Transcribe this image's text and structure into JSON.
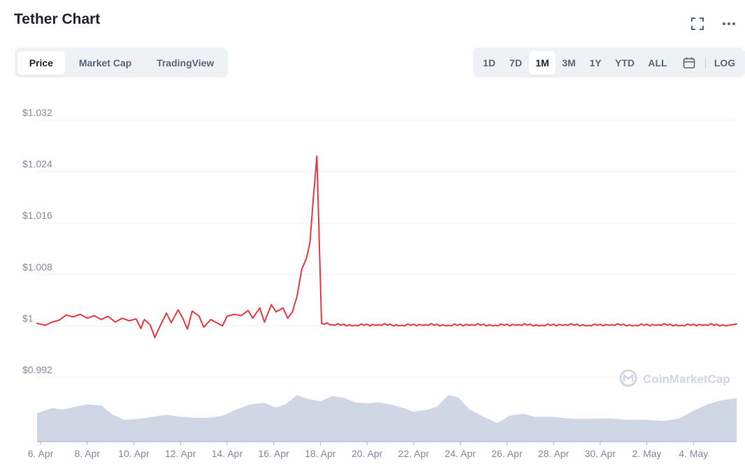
{
  "header": {
    "title": "Tether Chart",
    "icons": [
      "fullscreen-icon",
      "more-icon"
    ]
  },
  "tabs": [
    {
      "label": "Price",
      "active": true
    },
    {
      "label": "Market Cap",
      "active": false
    },
    {
      "label": "TradingView",
      "active": false
    }
  ],
  "ranges": [
    {
      "label": "1D",
      "active": false
    },
    {
      "label": "7D",
      "active": false
    },
    {
      "label": "1M",
      "active": true
    },
    {
      "label": "3M",
      "active": false
    },
    {
      "label": "1Y",
      "active": false
    },
    {
      "label": "YTD",
      "active": false
    },
    {
      "label": "ALL",
      "active": false
    }
  ],
  "log_label": "LOG",
  "watermark": "CoinMarketCap",
  "colors": {
    "line": "#ea3943",
    "volume": "#cfd6e4",
    "grid": "#eff2f5",
    "axis_text": "#808a9d",
    "brand": "#cfd6e4"
  },
  "chart_data": {
    "type": "line",
    "title": "Tether Chart",
    "y_ticks": [
      {
        "value": 1.032,
        "label": "$1.032"
      },
      {
        "value": 1.024,
        "label": "$1.024"
      },
      {
        "value": 1.016,
        "label": "$1.016"
      },
      {
        "value": 1.008,
        "label": "$1.008"
      },
      {
        "value": 1.0,
        "label": "$1"
      },
      {
        "value": 0.992,
        "label": "$0.992"
      }
    ],
    "ylim": [
      0.992,
      1.032
    ],
    "xlim": [
      5.85,
      35.85
    ],
    "x_ticks": [
      {
        "value": 6,
        "label": "6. Apr"
      },
      {
        "value": 8,
        "label": "8. Apr"
      },
      {
        "value": 10,
        "label": "10. Apr"
      },
      {
        "value": 12,
        "label": "12. Apr"
      },
      {
        "value": 14,
        "label": "14. Apr"
      },
      {
        "value": 16,
        "label": "16. Apr"
      },
      {
        "value": 18,
        "label": "18. Apr"
      },
      {
        "value": 20,
        "label": "20. Apr"
      },
      {
        "value": 22,
        "label": "22. Apr"
      },
      {
        "value": 24,
        "label": "24. Apr"
      },
      {
        "value": 26,
        "label": "26. Apr"
      },
      {
        "value": 28,
        "label": "28. Apr"
      },
      {
        "value": 30,
        "label": "30. Apr"
      },
      {
        "value": 32,
        "label": "2. May"
      },
      {
        "value": 34,
        "label": "4. May"
      }
    ],
    "price_series": {
      "name": "Price",
      "points": [
        [
          5.85,
          1.0004
        ],
        [
          6.2,
          1.0001
        ],
        [
          6.5,
          1.0006
        ],
        [
          6.8,
          1.0009
        ],
        [
          7.1,
          1.0017
        ],
        [
          7.4,
          1.0014
        ],
        [
          7.7,
          1.0018
        ],
        [
          8.0,
          1.0012
        ],
        [
          8.3,
          1.0016
        ],
        [
          8.6,
          1.001
        ],
        [
          8.9,
          1.0015
        ],
        [
          9.2,
          1.0006
        ],
        [
          9.5,
          1.0012
        ],
        [
          9.8,
          1.0008
        ],
        [
          10.1,
          1.0011
        ],
        [
          10.3,
          0.9996
        ],
        [
          10.45,
          1.001
        ],
        [
          10.7,
          1.0002
        ],
        [
          10.9,
          0.9982
        ],
        [
          11.1,
          0.9998
        ],
        [
          11.4,
          1.002
        ],
        [
          11.6,
          1.0005
        ],
        [
          11.9,
          1.0025
        ],
        [
          12.1,
          1.0012
        ],
        [
          12.3,
          0.9995
        ],
        [
          12.5,
          1.0023
        ],
        [
          12.8,
          1.0015
        ],
        [
          13.0,
          0.9998
        ],
        [
          13.3,
          1.001
        ],
        [
          13.6,
          1.0004
        ],
        [
          13.8,
          1.0
        ],
        [
          14.0,
          1.0015
        ],
        [
          14.3,
          1.0018
        ],
        [
          14.6,
          1.0016
        ],
        [
          14.9,
          1.0024
        ],
        [
          15.1,
          1.0012
        ],
        [
          15.4,
          1.0028
        ],
        [
          15.6,
          1.0006
        ],
        [
          15.9,
          1.0033
        ],
        [
          16.1,
          1.0022
        ],
        [
          16.4,
          1.0028
        ],
        [
          16.6,
          1.0012
        ],
        [
          16.8,
          1.0022
        ],
        [
          17.0,
          1.0046
        ],
        [
          17.2,
          1.0088
        ],
        [
          17.4,
          1.0105
        ],
        [
          17.55,
          1.0129
        ],
        [
          17.7,
          1.02
        ],
        [
          17.85,
          1.0264
        ],
        [
          17.95,
          1.0135
        ],
        [
          18.05,
          1.0004
        ],
        [
          18.5,
          1.0002
        ],
        [
          19.5,
          1.0001
        ],
        [
          20.5,
          1.0002
        ],
        [
          21.5,
          1.0001
        ],
        [
          22.5,
          1.0002
        ],
        [
          23.5,
          1.0001
        ],
        [
          24.5,
          1.0002
        ],
        [
          25.5,
          1.0001
        ],
        [
          26.5,
          1.0002
        ],
        [
          27.5,
          1.0001
        ],
        [
          28.5,
          1.0002
        ],
        [
          29.5,
          1.0001
        ],
        [
          30.5,
          1.0002
        ],
        [
          31.5,
          1.0001
        ],
        [
          32.5,
          1.0002
        ],
        [
          33.5,
          1.0001
        ],
        [
          34.5,
          1.0002
        ],
        [
          35.5,
          1.0001
        ],
        [
          35.85,
          1.0003
        ]
      ]
    },
    "volume_series": {
      "name": "Volume",
      "points": [
        [
          5.85,
          0.55
        ],
        [
          6.5,
          0.65
        ],
        [
          7.0,
          0.62
        ],
        [
          7.5,
          0.68
        ],
        [
          8.0,
          0.72
        ],
        [
          8.6,
          0.7
        ],
        [
          9.1,
          0.52
        ],
        [
          9.6,
          0.42
        ],
        [
          10.2,
          0.44
        ],
        [
          10.8,
          0.48
        ],
        [
          11.4,
          0.52
        ],
        [
          12.0,
          0.48
        ],
        [
          12.6,
          0.46
        ],
        [
          13.2,
          0.46
        ],
        [
          13.8,
          0.5
        ],
        [
          14.4,
          0.62
        ],
        [
          15.0,
          0.72
        ],
        [
          15.6,
          0.75
        ],
        [
          16.1,
          0.66
        ],
        [
          16.5,
          0.72
        ],
        [
          17.0,
          0.9
        ],
        [
          17.5,
          0.82
        ],
        [
          18.0,
          0.78
        ],
        [
          18.5,
          0.88
        ],
        [
          19.0,
          0.85
        ],
        [
          19.5,
          0.76
        ],
        [
          20.0,
          0.74
        ],
        [
          20.5,
          0.76
        ],
        [
          21.0,
          0.72
        ],
        [
          21.5,
          0.66
        ],
        [
          22.0,
          0.58
        ],
        [
          22.6,
          0.62
        ],
        [
          23.0,
          0.68
        ],
        [
          23.5,
          0.9
        ],
        [
          23.9,
          0.86
        ],
        [
          24.4,
          0.62
        ],
        [
          25.0,
          0.48
        ],
        [
          25.6,
          0.36
        ],
        [
          26.1,
          0.5
        ],
        [
          26.7,
          0.54
        ],
        [
          27.2,
          0.48
        ],
        [
          28.0,
          0.48
        ],
        [
          28.8,
          0.44
        ],
        [
          29.6,
          0.44
        ],
        [
          30.4,
          0.45
        ],
        [
          31.2,
          0.42
        ],
        [
          32.0,
          0.42
        ],
        [
          32.8,
          0.4
        ],
        [
          33.4,
          0.45
        ],
        [
          34.0,
          0.6
        ],
        [
          34.6,
          0.72
        ],
        [
          35.2,
          0.8
        ],
        [
          35.85,
          0.84
        ]
      ]
    }
  }
}
